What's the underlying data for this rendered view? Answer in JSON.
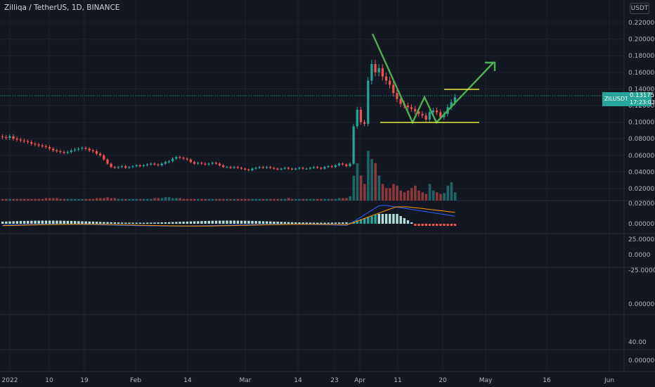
{
  "header": {
    "symbol_title": "Zilliqa / TetherUS, 1D, BINANCE",
    "currency": "USDT"
  },
  "price_tag": {
    "symbol": "ZILUSDT",
    "price": "0.13175",
    "countdown": "17:23:03",
    "color": "#26a69a"
  },
  "colors": {
    "background": "#131722",
    "up": "#26a69a",
    "down": "#ef5350",
    "pattern_green": "#4caf50",
    "level_yellow": "#e8e83c",
    "macd_line": "#2962ff",
    "signal_line": "#ff9800"
  },
  "chart_data": [
    {
      "type": "candlestick",
      "title": "Zilliqa / TetherUS, 1D, BINANCE",
      "y_ticks": [
        "0.22000",
        "0.20000",
        "0.18000",
        "0.16000",
        "0.14000",
        "0.12000",
        "0.10000",
        "0.08000",
        "0.06000",
        "0.04000",
        "0.02000",
        "0.00000"
      ],
      "ylim": [
        0.0,
        0.23
      ],
      "x_ticks": [
        "2022",
        "10",
        "19",
        "Feb",
        "14",
        "Mar",
        "14",
        "23",
        "Apr",
        "11",
        "20",
        "May",
        "16",
        "Jun"
      ],
      "series": {
        "close": [
          0.082,
          0.081,
          0.083,
          0.08,
          0.079,
          0.078,
          0.077,
          0.076,
          0.074,
          0.073,
          0.072,
          0.071,
          0.07,
          0.068,
          0.066,
          0.065,
          0.064,
          0.063,
          0.064,
          0.066,
          0.067,
          0.068,
          0.069,
          0.068,
          0.066,
          0.065,
          0.062,
          0.06,
          0.055,
          0.05,
          0.046,
          0.045,
          0.046,
          0.047,
          0.045,
          0.046,
          0.047,
          0.048,
          0.047,
          0.048,
          0.049,
          0.05,
          0.049,
          0.048,
          0.05,
          0.052,
          0.053,
          0.056,
          0.058,
          0.057,
          0.056,
          0.055,
          0.052,
          0.05,
          0.051,
          0.05,
          0.049,
          0.05,
          0.051,
          0.05,
          0.048,
          0.046,
          0.046,
          0.045,
          0.046,
          0.045,
          0.044,
          0.043,
          0.042,
          0.044,
          0.045,
          0.046,
          0.045,
          0.046,
          0.045,
          0.044,
          0.043,
          0.044,
          0.045,
          0.044,
          0.043,
          0.044,
          0.045,
          0.044,
          0.044,
          0.045,
          0.046,
          0.045,
          0.044,
          0.046,
          0.047,
          0.046,
          0.048,
          0.05,
          0.049,
          0.047,
          0.05,
          0.095,
          0.115,
          0.1,
          0.098,
          0.15,
          0.17,
          0.16,
          0.165,
          0.155,
          0.15,
          0.145,
          0.135,
          0.128,
          0.122,
          0.12,
          0.118,
          0.116,
          0.113,
          0.11,
          0.108,
          0.103,
          0.112,
          0.114,
          0.112,
          0.106,
          0.11,
          0.118,
          0.124,
          0.13
        ],
        "volume": [
          0.002,
          0.002,
          0.002,
          0.002,
          0.002,
          0.002,
          0.002,
          0.002,
          0.002,
          0.002,
          0.002,
          0.002,
          0.003,
          0.003,
          0.003,
          0.003,
          0.002,
          0.002,
          0.002,
          0.002,
          0.002,
          0.002,
          0.002,
          0.002,
          0.002,
          0.002,
          0.003,
          0.003,
          0.003,
          0.004,
          0.003,
          0.003,
          0.002,
          0.002,
          0.002,
          0.002,
          0.002,
          0.002,
          0.002,
          0.002,
          0.002,
          0.002,
          0.003,
          0.003,
          0.003,
          0.004,
          0.004,
          0.003,
          0.003,
          0.003,
          0.002,
          0.002,
          0.002,
          0.002,
          0.002,
          0.002,
          0.002,
          0.002,
          0.002,
          0.002,
          0.002,
          0.002,
          0.002,
          0.002,
          0.002,
          0.002,
          0.002,
          0.002,
          0.002,
          0.002,
          0.002,
          0.002,
          0.002,
          0.002,
          0.002,
          0.002,
          0.002,
          0.002,
          0.002,
          0.003,
          0.002,
          0.002,
          0.002,
          0.002,
          0.002,
          0.002,
          0.002,
          0.002,
          0.002,
          0.002,
          0.002,
          0.002,
          0.002,
          0.003,
          0.003,
          0.003,
          0.005,
          0.03,
          0.045,
          0.03,
          0.02,
          0.06,
          0.05,
          0.045,
          0.03,
          0.02,
          0.015,
          0.015,
          0.02,
          0.018,
          0.012,
          0.01,
          0.012,
          0.015,
          0.018,
          0.012,
          0.01,
          0.008,
          0.02,
          0.012,
          0.01,
          0.008,
          0.009,
          0.018,
          0.022,
          0.01
        ]
      }
    },
    {
      "type": "line",
      "title": "",
      "y_ticks": [
        "0.02000",
        "0.00000"
      ],
      "ylim": [
        -0.005,
        0.025
      ]
    },
    {
      "type": "line",
      "title": "",
      "y_ticks": [
        "25.0000",
        "0.0000",
        "-25.0000"
      ],
      "ylim": [
        -50,
        50
      ]
    },
    {
      "type": "line",
      "title": "",
      "y_ticks": [
        "0.00000"
      ]
    },
    {
      "type": "line",
      "title": "",
      "y_ticks": [
        "40.00",
        "0.00000"
      ]
    }
  ]
}
